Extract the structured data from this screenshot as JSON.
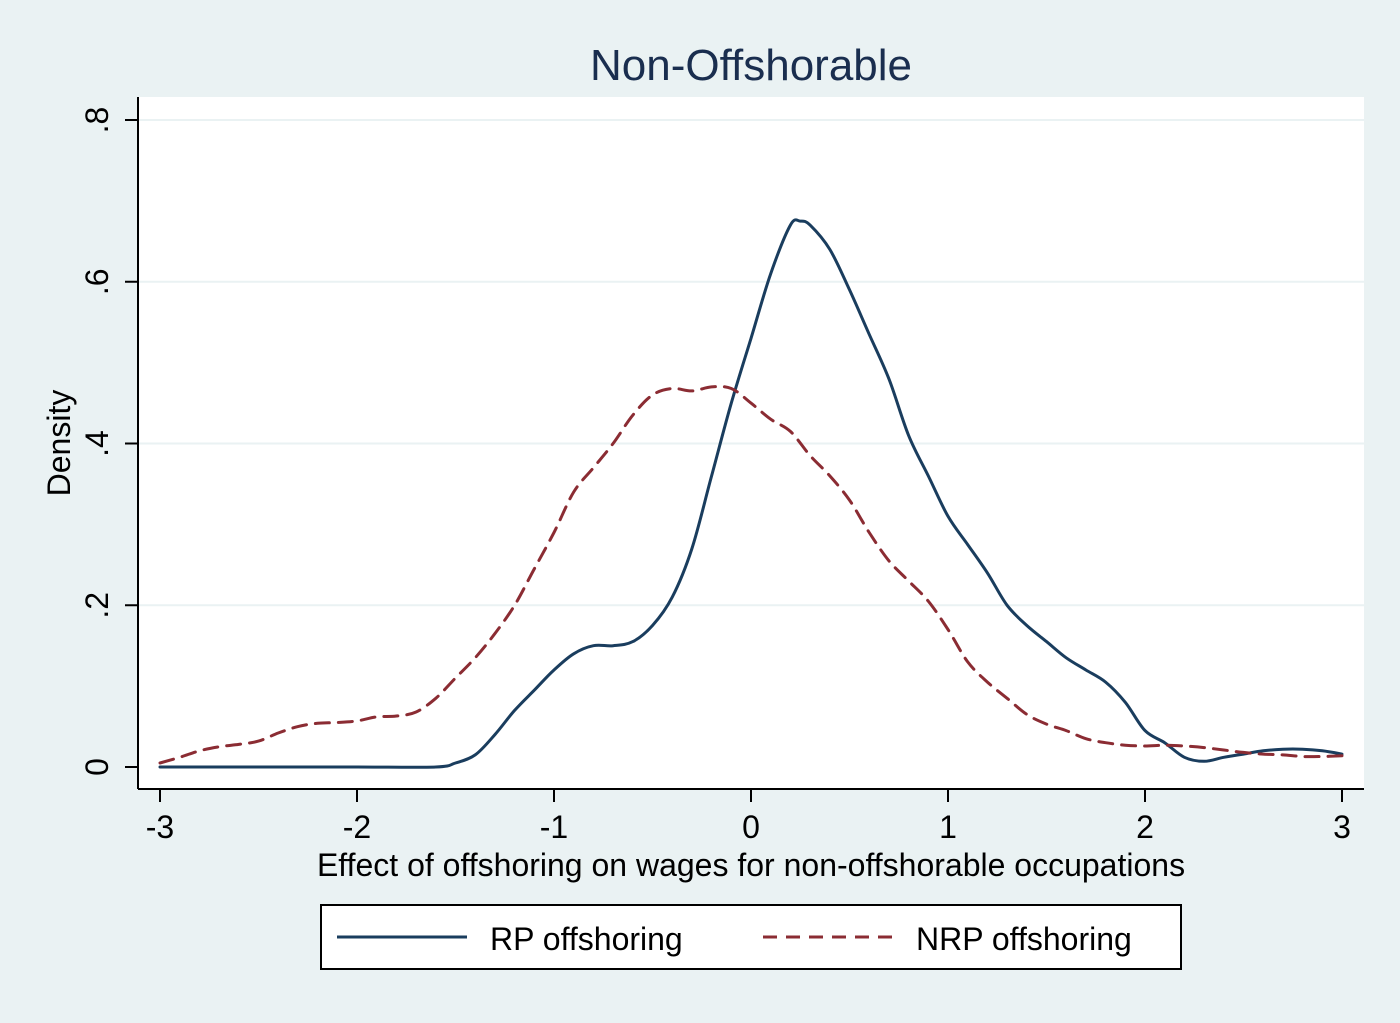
{
  "chart_data": {
    "type": "line",
    "title": "Non-Offshorable",
    "xlabel": "Effect of offshoring on wages for non-offshorable occupations",
    "ylabel": "Density",
    "xlim": [
      -3,
      3
    ],
    "ylim": [
      0,
      0.8
    ],
    "x_ticks": [
      -3,
      -2,
      -1,
      0,
      1,
      2,
      3
    ],
    "x_tick_labels": [
      "-3",
      "-2",
      "-1",
      "0",
      "1",
      "2",
      "3"
    ],
    "y_ticks": [
      0,
      0.2,
      0.4,
      0.6,
      0.8
    ],
    "y_tick_labels": [
      "0",
      ".2",
      ".4",
      ".6",
      ".8"
    ],
    "grid": "horizontal",
    "legend_position": "bottom",
    "colors": {
      "background": "#eaf2f3",
      "plot_area": "#ffffff",
      "grid": "#eaf2f3",
      "title": "#1a2e4f",
      "rp_line": "#1a3d5e",
      "nrp_line": "#8b2c33"
    },
    "series": [
      {
        "name": "RP offshoring",
        "style": "solid",
        "points": [
          [
            -3.0,
            0.0
          ],
          [
            -2.5,
            0.0
          ],
          [
            -2.0,
            0.0
          ],
          [
            -1.6,
            0.0
          ],
          [
            -1.5,
            0.005
          ],
          [
            -1.4,
            0.015
          ],
          [
            -1.3,
            0.04
          ],
          [
            -1.2,
            0.07
          ],
          [
            -1.1,
            0.095
          ],
          [
            -1.0,
            0.12
          ],
          [
            -0.9,
            0.14
          ],
          [
            -0.8,
            0.15
          ],
          [
            -0.7,
            0.15
          ],
          [
            -0.6,
            0.155
          ],
          [
            -0.5,
            0.175
          ],
          [
            -0.4,
            0.21
          ],
          [
            -0.3,
            0.27
          ],
          [
            -0.2,
            0.36
          ],
          [
            -0.1,
            0.45
          ],
          [
            0.0,
            0.53
          ],
          [
            0.1,
            0.61
          ],
          [
            0.2,
            0.67
          ],
          [
            0.25,
            0.675
          ],
          [
            0.3,
            0.67
          ],
          [
            0.4,
            0.64
          ],
          [
            0.5,
            0.59
          ],
          [
            0.6,
            0.535
          ],
          [
            0.7,
            0.48
          ],
          [
            0.8,
            0.41
          ],
          [
            0.9,
            0.36
          ],
          [
            1.0,
            0.31
          ],
          [
            1.1,
            0.275
          ],
          [
            1.2,
            0.24
          ],
          [
            1.3,
            0.2
          ],
          [
            1.4,
            0.175
          ],
          [
            1.5,
            0.155
          ],
          [
            1.6,
            0.135
          ],
          [
            1.7,
            0.12
          ],
          [
            1.8,
            0.105
          ],
          [
            1.9,
            0.08
          ],
          [
            2.0,
            0.045
          ],
          [
            2.1,
            0.03
          ],
          [
            2.2,
            0.012
          ],
          [
            2.3,
            0.007
          ],
          [
            2.4,
            0.012
          ],
          [
            2.5,
            0.016
          ],
          [
            2.6,
            0.02
          ],
          [
            2.7,
            0.022
          ],
          [
            2.8,
            0.022
          ],
          [
            2.9,
            0.02
          ],
          [
            3.0,
            0.016
          ]
        ]
      },
      {
        "name": "NRP offshoring",
        "style": "dashed",
        "points": [
          [
            -3.0,
            0.005
          ],
          [
            -2.9,
            0.012
          ],
          [
            -2.8,
            0.02
          ],
          [
            -2.7,
            0.025
          ],
          [
            -2.6,
            0.028
          ],
          [
            -2.5,
            0.032
          ],
          [
            -2.4,
            0.042
          ],
          [
            -2.3,
            0.05
          ],
          [
            -2.2,
            0.054
          ],
          [
            -2.1,
            0.055
          ],
          [
            -2.0,
            0.057
          ],
          [
            -1.9,
            0.062
          ],
          [
            -1.8,
            0.063
          ],
          [
            -1.7,
            0.068
          ],
          [
            -1.6,
            0.085
          ],
          [
            -1.5,
            0.11
          ],
          [
            -1.4,
            0.135
          ],
          [
            -1.3,
            0.165
          ],
          [
            -1.2,
            0.2
          ],
          [
            -1.1,
            0.245
          ],
          [
            -1.0,
            0.29
          ],
          [
            -0.9,
            0.34
          ],
          [
            -0.8,
            0.37
          ],
          [
            -0.7,
            0.4
          ],
          [
            -0.6,
            0.435
          ],
          [
            -0.5,
            0.46
          ],
          [
            -0.4,
            0.468
          ],
          [
            -0.3,
            0.465
          ],
          [
            -0.2,
            0.47
          ],
          [
            -0.1,
            0.468
          ],
          [
            0.0,
            0.45
          ],
          [
            0.1,
            0.43
          ],
          [
            0.2,
            0.415
          ],
          [
            0.3,
            0.385
          ],
          [
            0.4,
            0.36
          ],
          [
            0.5,
            0.33
          ],
          [
            0.6,
            0.29
          ],
          [
            0.7,
            0.255
          ],
          [
            0.8,
            0.23
          ],
          [
            0.9,
            0.205
          ],
          [
            1.0,
            0.17
          ],
          [
            1.1,
            0.13
          ],
          [
            1.2,
            0.105
          ],
          [
            1.3,
            0.085
          ],
          [
            1.4,
            0.065
          ],
          [
            1.5,
            0.053
          ],
          [
            1.6,
            0.045
          ],
          [
            1.7,
            0.035
          ],
          [
            1.8,
            0.03
          ],
          [
            1.9,
            0.027
          ],
          [
            2.0,
            0.026
          ],
          [
            2.1,
            0.027
          ],
          [
            2.2,
            0.026
          ],
          [
            2.3,
            0.024
          ],
          [
            2.4,
            0.021
          ],
          [
            2.5,
            0.018
          ],
          [
            2.6,
            0.016
          ],
          [
            2.7,
            0.015
          ],
          [
            2.8,
            0.013
          ],
          [
            2.9,
            0.013
          ],
          [
            3.0,
            0.014
          ]
        ]
      }
    ]
  }
}
